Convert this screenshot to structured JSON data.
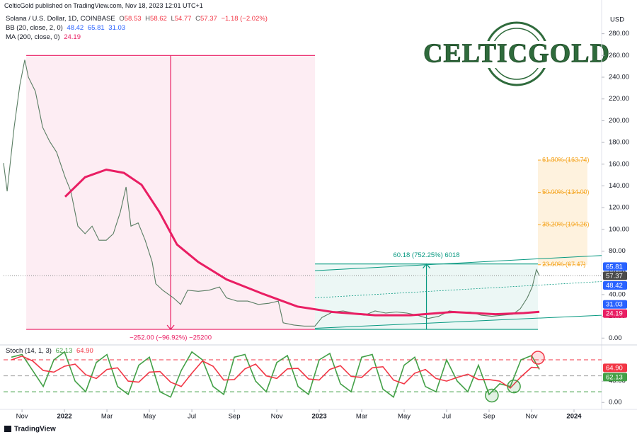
{
  "header": "CelticGold published on TradingView.com, Nov 18, 2023 12:01 UTC+1",
  "logo": "CELTICGOLD",
  "footer": "TradingView",
  "chart_data": [
    {
      "type": "line",
      "title": "Solana / U.S. Dollar, 1D, COINBASE",
      "ohlc": [
        {
          "label": "O",
          "value": 58.53
        },
        {
          "label": "H",
          "value": 58.62
        },
        {
          "label": "L",
          "value": 54.77
        },
        {
          "label": "C",
          "value": 57.37
        }
      ],
      "change": "−1.18 (−2.02%)",
      "currency": "USD",
      "xlim": [
        -0.87,
        27.3
      ],
      "ylim": [
        -5,
        298
      ],
      "yticks": [
        {
          "value": 0,
          "label": "0.00"
        },
        {
          "value": 20,
          "label": "20.00"
        },
        {
          "value": 40,
          "label": "40.00"
        },
        {
          "value": 60,
          "label": "60.00"
        },
        {
          "value": 80,
          "label": "80.00"
        },
        {
          "value": 100,
          "label": "100.00"
        },
        {
          "value": 120,
          "label": "120.00"
        },
        {
          "value": 140,
          "label": "140.00"
        },
        {
          "value": 160,
          "label": "160.00"
        },
        {
          "value": 180,
          "label": "180.00"
        },
        {
          "value": 200,
          "label": "200.00"
        },
        {
          "value": 220,
          "label": "220.00"
        },
        {
          "value": 240,
          "label": "240.00"
        },
        {
          "value": 260,
          "label": "260.00"
        },
        {
          "value": 280,
          "label": "280.00"
        }
      ],
      "color": "#5a7d63",
      "x": [
        -0.87,
        -0.7,
        -0.37,
        -0.1,
        0.13,
        0.3,
        0.63,
        0.97,
        1.3,
        1.63,
        2.03,
        2.3,
        2.63,
        2.97,
        3.3,
        3.63,
        3.97,
        4.3,
        4.63,
        4.9,
        5.13,
        5.47,
        5.8,
        6.13,
        6.3,
        6.63,
        7.13,
        7.47,
        7.8,
        8.3,
        8.8,
        9.3,
        9.63,
        10.13,
        10.63,
        11.13,
        11.63,
        12.07,
        12.3,
        12.8,
        13.3,
        13.8,
        14.13,
        14.63,
        15.13,
        15.63,
        16.13,
        16.63,
        17.13,
        17.63,
        18.13,
        18.63,
        19.13,
        19.63,
        20.13,
        20.63,
        21.13,
        21.63,
        22.13,
        22.63,
        23.13,
        23.47,
        23.8,
        24.03,
        24.23,
        24.37
      ],
      "values": [
        161,
        135,
        194,
        233,
        256,
        240,
        227,
        194,
        181,
        171,
        148,
        135,
        103,
        96,
        103,
        90,
        90,
        96,
        116,
        139,
        103,
        106,
        90,
        70,
        50,
        44,
        37,
        31,
        44,
        43,
        44,
        47,
        37,
        34,
        34,
        31,
        32,
        34,
        14,
        12,
        11,
        11,
        19,
        24,
        25,
        23,
        21,
        25,
        23,
        24,
        23,
        21,
        18,
        20,
        25,
        24,
        24,
        21,
        20,
        21,
        22,
        27,
        37,
        47,
        63,
        57.37
      ],
      "bb": {
        "name": "BB (20, close, 2, 0)",
        "values": [
          48.42,
          65.81,
          31.03
        ],
        "color": "#2962ff"
      },
      "ma": {
        "name": "MA (200, close, 0)",
        "value": 24.19,
        "color": "#e91e63",
        "x": [
          2.03,
          2.97,
          3.97,
          4.8,
          5.63,
          6.47,
          7.3,
          8.3,
          9.63,
          11.3,
          12.97,
          14.63,
          16.63,
          18.3,
          20.3,
          22.3,
          23.63,
          24.37
        ],
        "values": [
          130,
          148,
          155,
          152,
          141,
          116,
          86,
          70,
          54,
          41,
          29,
          24,
          21,
          21,
          24,
          22,
          23,
          24.19
        ]
      },
      "measures": [
        {
          "label": "−252.00 (−96.92%) −25200",
          "from": 260,
          "to": 8,
          "x": [
            0.2,
            13.8
          ],
          "color": "#e91e63"
        },
        {
          "label": "60.18 (752.25%) 6018",
          "from": 8,
          "to": 68.18,
          "x": [
            13.8,
            24.3
          ],
          "color": "#089981"
        }
      ],
      "fib": {
        "x": [
          24.3,
          26.63
        ],
        "color": "#f5a623",
        "levels": [
          {
            "value": 67.47,
            "label": "23.60% (67.47)"
          },
          {
            "value": 104.26,
            "label": "38.20% (104.26)"
          },
          {
            "value": 134,
            "label": "50.00% (134.00)"
          },
          {
            "value": 163.74,
            "label": "61.80% (163.74)"
          }
        ]
      },
      "channel": {
        "color": "#089981",
        "lines": [
          [
            13.8,
            9,
            27.3,
            21
          ],
          [
            13.8,
            37,
            27.3,
            52
          ],
          [
            13.8,
            62,
            27.3,
            76
          ]
        ]
      }
    },
    {
      "type": "line",
      "title": "Stoch (14, 1, 3)",
      "readout": [
        62.13,
        {
          "value": 64.9,
          "label": "64.90"
        }
      ],
      "xlim": [
        -0.87,
        27.3
      ],
      "ylim": [
        -13,
        104
      ],
      "yticks": [
        {
          "value": 0,
          "label": "0.00"
        },
        {
          "value": 40,
          "label": "40.00"
        }
      ],
      "xticks": [
        {
          "value": 0,
          "label": "Nov"
        },
        {
          "value": 2,
          "label": "2022"
        },
        {
          "value": 4,
          "label": "Mar"
        },
        {
          "value": 6,
          "label": "May"
        },
        {
          "value": 8,
          "label": "Jul"
        },
        {
          "value": 10,
          "label": "Sep"
        },
        {
          "value": 12,
          "label": "Nov"
        },
        {
          "value": 14,
          "label": "2023"
        },
        {
          "value": 16,
          "label": "Mar"
        },
        {
          "value": 18,
          "label": "May"
        },
        {
          "value": 20,
          "label": "Jul"
        },
        {
          "value": 22,
          "label": "Sep"
        },
        {
          "value": 24,
          "label": "Nov"
        },
        {
          "value": 26,
          "label": "2024"
        }
      ],
      "x": [
        -0.5,
        0,
        0.5,
        1,
        1.5,
        2,
        2.5,
        3,
        3.5,
        4,
        4.5,
        5,
        5.5,
        6,
        6.5,
        7,
        7.5,
        8,
        8.5,
        9,
        9.5,
        10,
        10.5,
        11,
        11.5,
        12,
        12.5,
        13,
        13.5,
        14,
        14.5,
        15,
        15.5,
        16,
        16.5,
        17,
        17.5,
        18,
        18.5,
        19,
        19.5,
        20,
        20.5,
        21,
        21.5,
        22,
        22.5,
        23,
        23.5,
        24,
        24.37
      ],
      "series": [
        {
          "color": "#43a047",
          "values": [
            85,
            90,
            60,
            30,
            80,
            95,
            40,
            20,
            75,
            90,
            30,
            15,
            70,
            85,
            20,
            10,
            60,
            95,
            80,
            30,
            15,
            85,
            90,
            40,
            20,
            75,
            88,
            30,
            15,
            80,
            92,
            35,
            20,
            85,
            90,
            25,
            10,
            70,
            85,
            30,
            20,
            80,
            40,
            20,
            70,
            15,
            35,
            30,
            80,
            88,
            62.13
          ]
        },
        {
          "color": "#f23645",
          "values": [
            80,
            87,
            78,
            60,
            57,
            68,
            72,
            52,
            45,
            62,
            65,
            40,
            38,
            57,
            58,
            38,
            30,
            55,
            78,
            68,
            42,
            43,
            63,
            72,
            50,
            45,
            63,
            64,
            44,
            42,
            62,
            69,
            49,
            47,
            65,
            67,
            42,
            35,
            55,
            62,
            45,
            40,
            47,
            53,
            43,
            43,
            40,
            27,
            48,
            66,
            64.9
          ]
        }
      ],
      "bands": [
        {
          "value": 80,
          "color": "#f23645"
        },
        {
          "value": 50,
          "color": "#9e9e9e"
        },
        {
          "value": 20,
          "color": "#43a047"
        }
      ],
      "markers": [
        {
          "x": 22.13,
          "y": 13,
          "color": "#43a047"
        },
        {
          "x": 23.17,
          "y": 30,
          "color": "#43a047"
        },
        {
          "x": 24.3,
          "y": 84,
          "color": "#f23645"
        }
      ]
    }
  ]
}
